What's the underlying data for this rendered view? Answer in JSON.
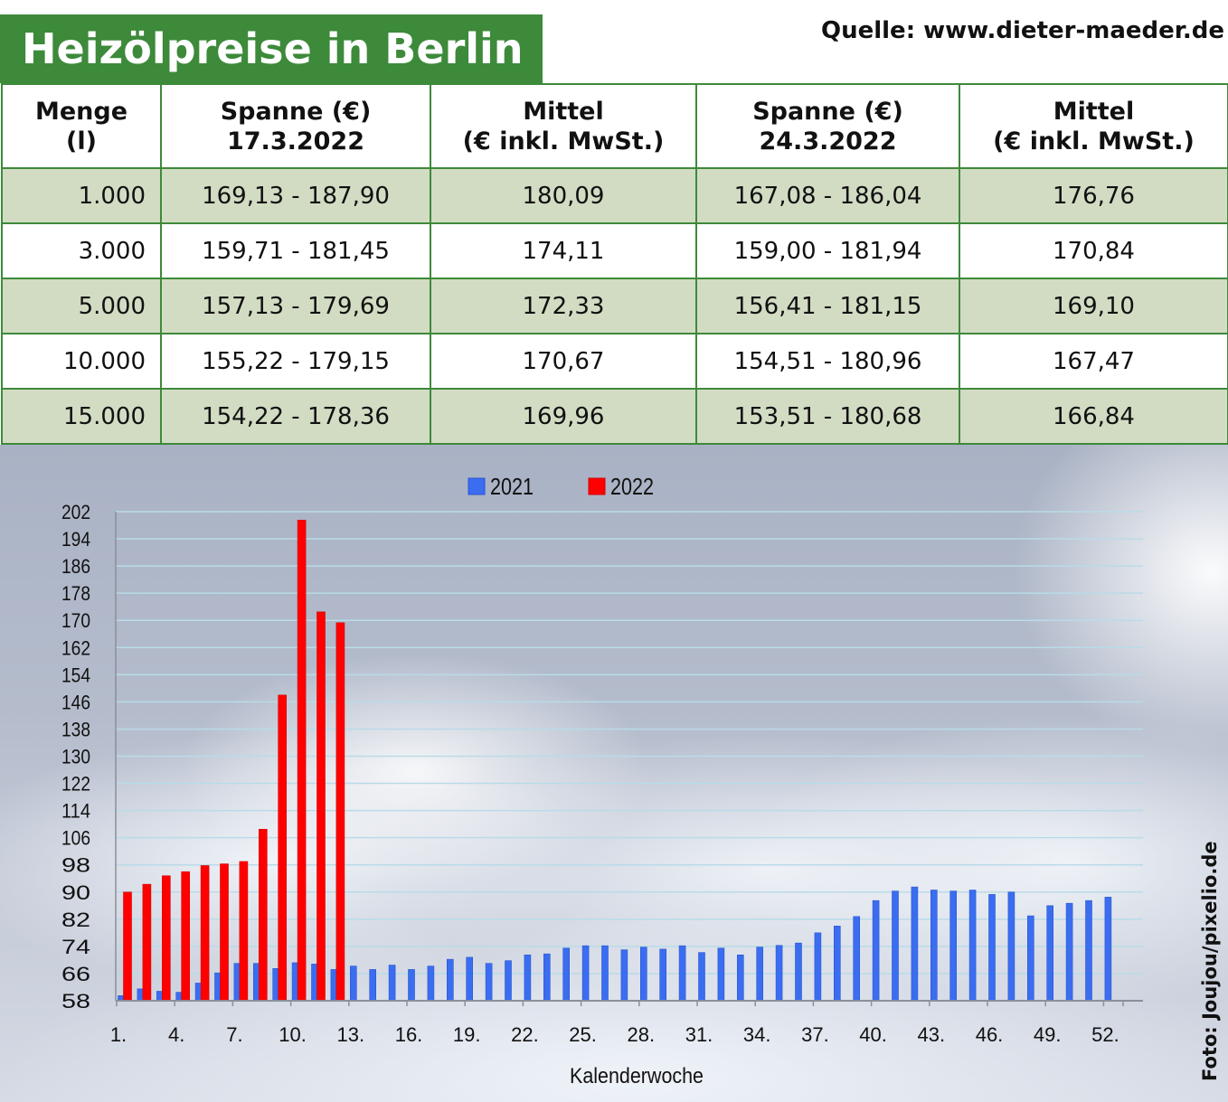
{
  "header": {
    "title": "Heizölpreise in Berlin",
    "source": "Quelle: www.dieter-maeder.de"
  },
  "table": {
    "headers": [
      [
        "Menge",
        "(l)"
      ],
      [
        "Spanne (€)",
        "17.3.2022"
      ],
      [
        "Mittel",
        "(€ inkl. MwSt.)"
      ],
      [
        "Spanne (€)",
        "24.3.2022"
      ],
      [
        "Mittel",
        "(€ inkl. MwSt.)"
      ]
    ],
    "rows": [
      [
        "1.000",
        "169,13 - 187,90",
        "180,09",
        "167,08 - 186,04",
        "176,76"
      ],
      [
        "3.000",
        "159,71 - 181,45",
        "174,11",
        "159,00 - 181,94",
        "170,84"
      ],
      [
        "5.000",
        "157,13 - 179,69",
        "172,33",
        "156,41 - 181,15",
        "169,10"
      ],
      [
        "10.000",
        "155,22 - 179,15",
        "170,67",
        "154,51 - 180,96",
        "167,47"
      ],
      [
        "15.000",
        "154,22 - 178,36",
        "169,96",
        "153,51 - 180,68",
        "166,84"
      ]
    ]
  },
  "photo_credit": "Foto: Joujou/pixelio.de",
  "colors": {
    "title_bg": "#3d8a3a",
    "table_border": "#3d8a3a",
    "row_shade": "#d2dcc3",
    "series_2021": "#3a6df0",
    "series_2022": "#ff0000"
  },
  "chart_data": {
    "type": "bar",
    "xlabel": "Kalenderwoche",
    "ylabel": "",
    "ylim": [
      58,
      202
    ],
    "yticks": [
      58,
      66,
      74,
      82,
      90,
      98,
      106,
      114,
      122,
      130,
      138,
      146,
      154,
      162,
      170,
      178,
      186,
      194,
      202
    ],
    "xtick_labels": [
      "1.",
      "4.",
      "7.",
      "10.",
      "13.",
      "16.",
      "19.",
      "22.",
      "25.",
      "28.",
      "31.",
      "34.",
      "37.",
      "40.",
      "43.",
      "46.",
      "49.",
      "52."
    ],
    "xtick_weeks": [
      1,
      4,
      7,
      10,
      13,
      16,
      19,
      22,
      25,
      28,
      31,
      34,
      37,
      40,
      43,
      46,
      49,
      52
    ],
    "grid": true,
    "legend": "top-center",
    "categories": [
      1,
      2,
      3,
      4,
      5,
      6,
      7,
      8,
      9,
      10,
      11,
      12,
      13,
      14,
      15,
      16,
      17,
      18,
      19,
      20,
      21,
      22,
      23,
      24,
      25,
      26,
      27,
      28,
      29,
      30,
      31,
      32,
      33,
      34,
      35,
      36,
      37,
      38,
      39,
      40,
      41,
      42,
      43,
      44,
      45,
      46,
      47,
      48,
      49,
      50,
      51,
      52
    ],
    "series": [
      {
        "name": "2021",
        "values": [
          59.5,
          61.5,
          60.8,
          60.5,
          63.2,
          66.2,
          69.0,
          69.0,
          67.5,
          69.2,
          68.8,
          67.2,
          68.2,
          67.2,
          68.5,
          67.2,
          68.2,
          70.2,
          70.8,
          69.0,
          69.8,
          71.5,
          71.8,
          73.5,
          74.2,
          74.2,
          73.0,
          73.8,
          73.2,
          74.2,
          72.2,
          73.5,
          71.5,
          73.8,
          74.3,
          75.0,
          78.0,
          80.0,
          82.8,
          87.5,
          90.3,
          91.5,
          90.6,
          90.3,
          90.6,
          89.3,
          90.0,
          83.0,
          86.0,
          86.7,
          87.5,
          88.5
        ]
      },
      {
        "name": "2022",
        "values": [
          90.0,
          92.3,
          94.8,
          96.0,
          97.8,
          98.3,
          99.0,
          108.5,
          148.0,
          199.5,
          172.5,
          169.3,
          null,
          null,
          null,
          null,
          null,
          null,
          null,
          null,
          null,
          null,
          null,
          null,
          null,
          null,
          null,
          null,
          null,
          null,
          null,
          null,
          null,
          null,
          null,
          null,
          null,
          null,
          null,
          null,
          null,
          null,
          null,
          null,
          null,
          null,
          null,
          null,
          null,
          null,
          null,
          null
        ]
      }
    ]
  }
}
